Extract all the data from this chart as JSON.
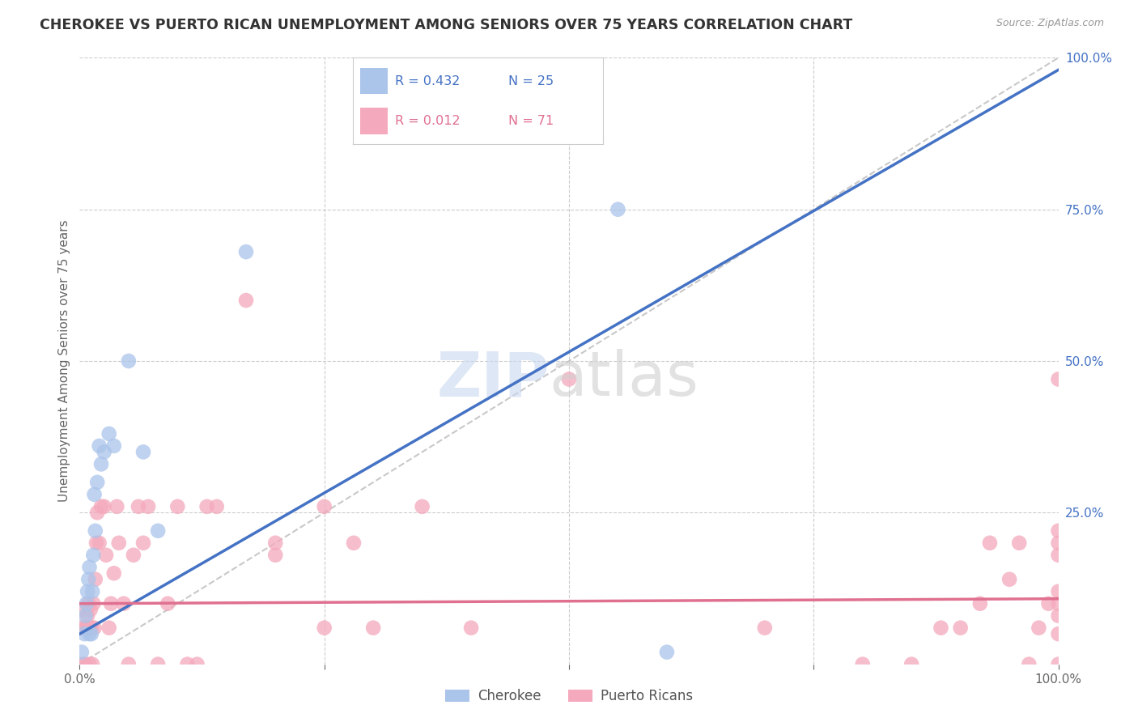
{
  "title": "CHEROKEE VS PUERTO RICAN UNEMPLOYMENT AMONG SENIORS OVER 75 YEARS CORRELATION CHART",
  "source": "Source: ZipAtlas.com",
  "ylabel": "Unemployment Among Seniors over 75 years",
  "cherokee_color": "#aac4ea",
  "cherokee_line_color": "#4472c4",
  "puerto_rican_color": "#f4a9bc",
  "puerto_rican_line_color": "#e07090",
  "watermark_zip_color": "#c8d8f0",
  "watermark_atlas_color": "#d0d0d0",
  "background_color": "#ffffff",
  "grid_color": "#cccccc",
  "title_color": "#333333",
  "right_tick_color": "#4472c4",
  "cherokee_line_slope": 0.93,
  "cherokee_line_intercept": 0.05,
  "puerto_rican_line_slope": 0.008,
  "puerto_rican_line_intercept": 0.1,
  "cherokee_points_x": [
    0.002,
    0.005,
    0.006,
    0.007,
    0.008,
    0.009,
    0.01,
    0.01,
    0.012,
    0.013,
    0.014,
    0.015,
    0.016,
    0.018,
    0.02,
    0.022,
    0.025,
    0.03,
    0.035,
    0.05,
    0.065,
    0.08,
    0.17,
    0.55,
    0.6
  ],
  "cherokee_points_y": [
    0.02,
    0.05,
    0.08,
    0.1,
    0.12,
    0.14,
    0.05,
    0.16,
    0.05,
    0.12,
    0.18,
    0.28,
    0.22,
    0.3,
    0.36,
    0.33,
    0.35,
    0.38,
    0.36,
    0.5,
    0.35,
    0.22,
    0.68,
    0.75,
    0.02
  ],
  "puerto_rican_points_x": [
    0.0,
    0.0,
    0.003,
    0.005,
    0.006,
    0.007,
    0.008,
    0.009,
    0.01,
    0.01,
    0.011,
    0.012,
    0.013,
    0.014,
    0.015,
    0.016,
    0.017,
    0.018,
    0.02,
    0.022,
    0.025,
    0.027,
    0.03,
    0.032,
    0.035,
    0.038,
    0.04,
    0.045,
    0.05,
    0.055,
    0.06,
    0.065,
    0.07,
    0.08,
    0.09,
    0.1,
    0.11,
    0.12,
    0.13,
    0.14,
    0.17,
    0.2,
    0.2,
    0.25,
    0.25,
    0.28,
    0.3,
    0.35,
    0.4,
    0.5,
    0.7,
    0.8,
    0.85,
    0.88,
    0.9,
    0.92,
    0.93,
    0.95,
    0.96,
    0.97,
    0.98,
    0.99,
    1.0,
    1.0,
    1.0,
    1.0,
    1.0,
    1.0,
    1.0,
    1.0,
    1.0
  ],
  "puerto_rican_points_y": [
    0.06,
    0.09,
    0.0,
    0.06,
    0.0,
    0.06,
    0.08,
    0.1,
    0.0,
    0.06,
    0.09,
    0.06,
    0.0,
    0.1,
    0.06,
    0.14,
    0.2,
    0.25,
    0.2,
    0.26,
    0.26,
    0.18,
    0.06,
    0.1,
    0.15,
    0.26,
    0.2,
    0.1,
    0.0,
    0.18,
    0.26,
    0.2,
    0.26,
    0.0,
    0.1,
    0.26,
    0.0,
    0.0,
    0.26,
    0.26,
    0.6,
    0.18,
    0.2,
    0.06,
    0.26,
    0.2,
    0.06,
    0.26,
    0.06,
    0.47,
    0.06,
    0.0,
    0.0,
    0.06,
    0.06,
    0.1,
    0.2,
    0.14,
    0.2,
    0.0,
    0.06,
    0.1,
    0.0,
    0.05,
    0.08,
    0.1,
    0.12,
    0.18,
    0.2,
    0.22,
    0.47
  ]
}
